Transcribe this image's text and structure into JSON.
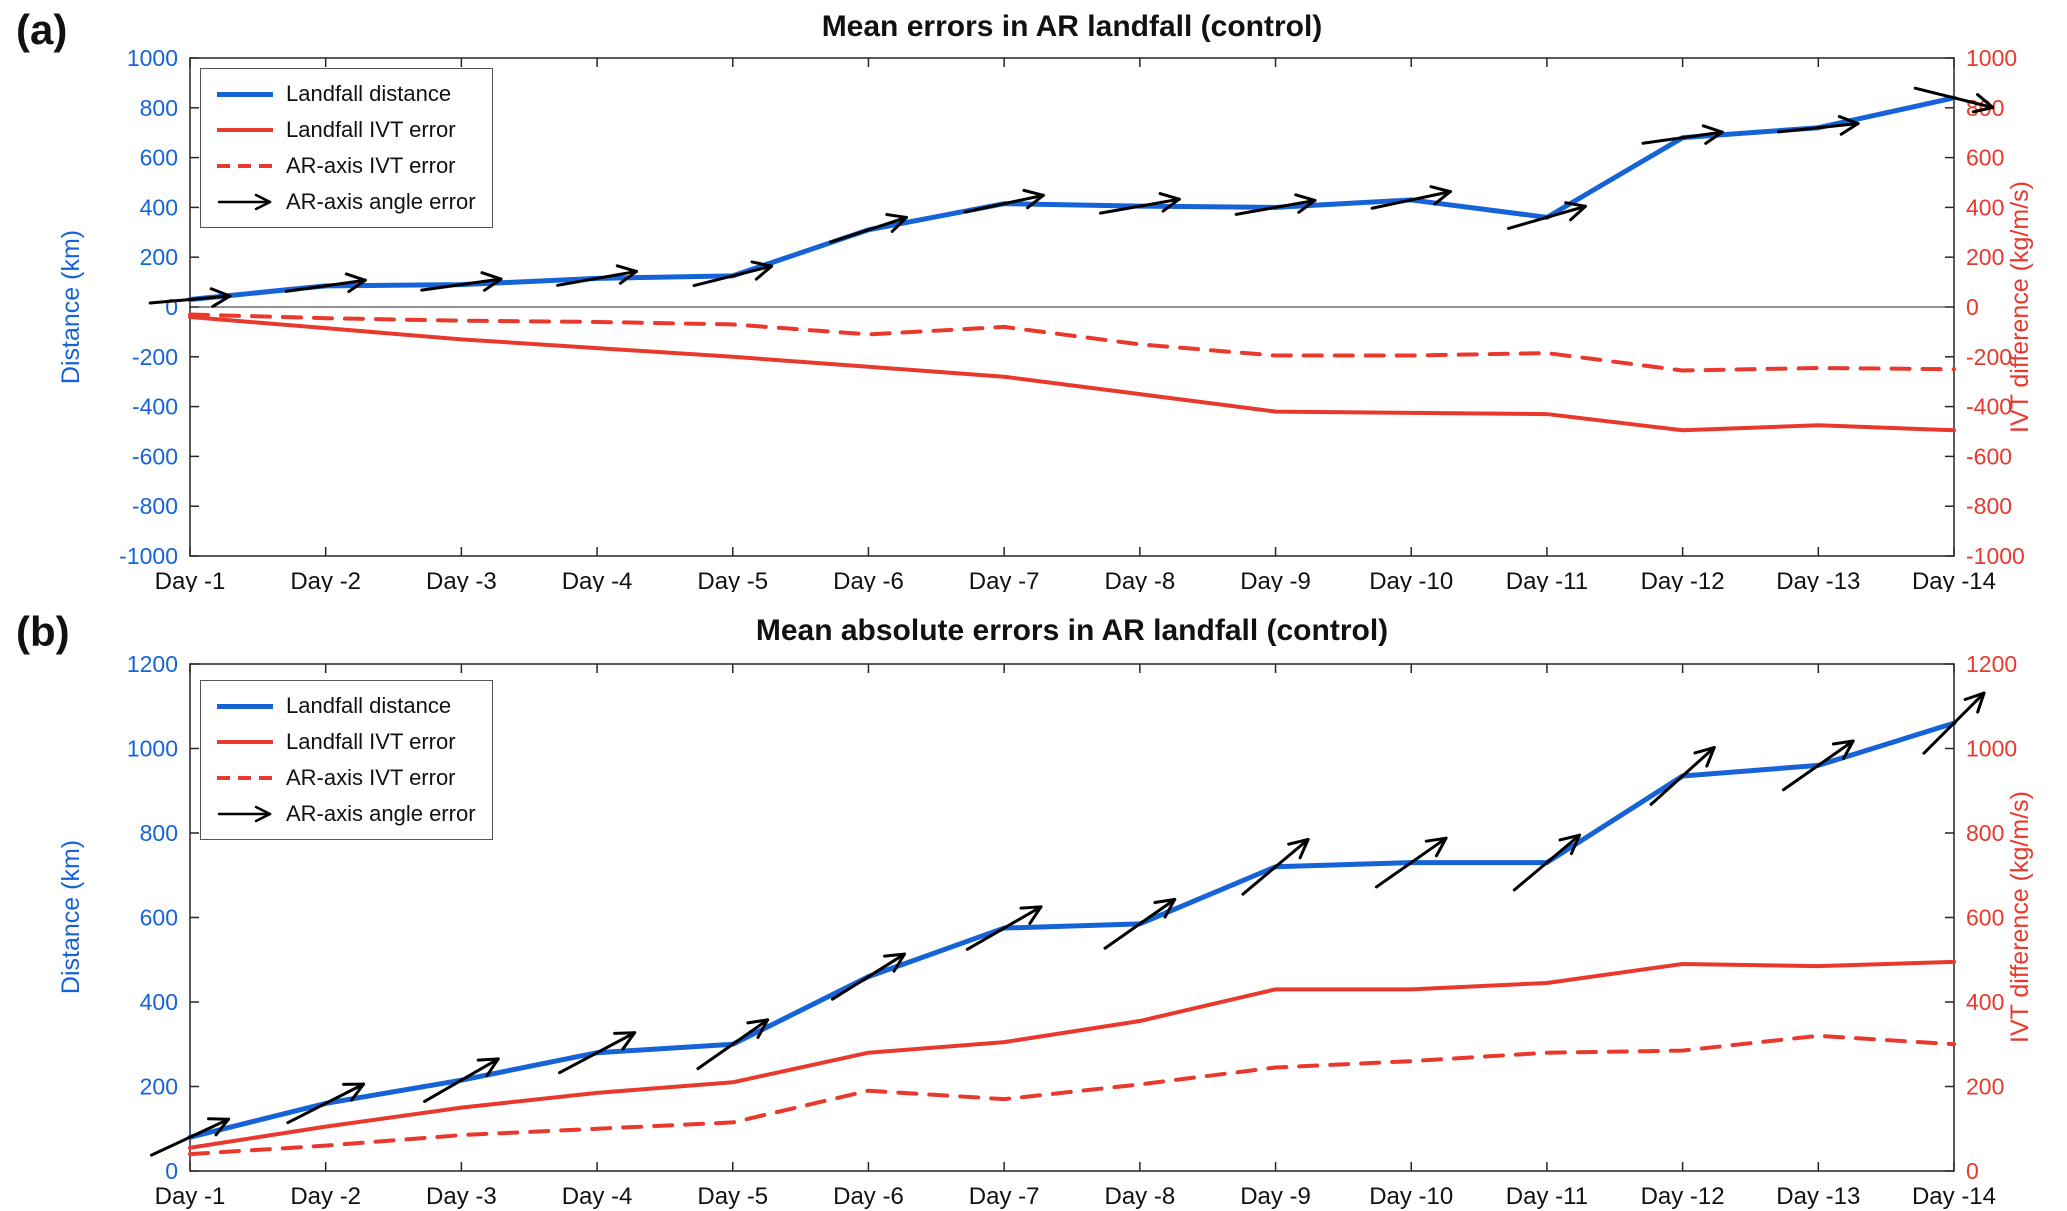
{
  "colors": {
    "blue": "#1663d8",
    "red": "#e8392c",
    "black": "#000000",
    "axis": "#262626"
  },
  "chart_data": [
    {
      "type": "line",
      "panel_label": "(a)",
      "title": "Mean errors in AR landfall (control)",
      "ylabel_left": "Distance (km)",
      "ylabel_right": "IVT difference (kg/m/s)",
      "ylim": [
        -1000,
        1000
      ],
      "ytick_step": 200,
      "zero_line": true,
      "legend_position": "top-left",
      "categories": [
        "Day -1",
        "Day -2",
        "Day -3",
        "Day -4",
        "Day -5",
        "Day -6",
        "Day -7",
        "Day -8",
        "Day -9",
        "Day -10",
        "Day -11",
        "Day -12",
        "Day -13",
        "Day -14"
      ],
      "series": [
        {
          "name": "Landfall distance",
          "axis": "left",
          "style": "solid",
          "color_key": "blue",
          "width": 5,
          "values": [
            30,
            85,
            90,
            115,
            125,
            310,
            415,
            405,
            400,
            430,
            360,
            680,
            720,
            840
          ]
        },
        {
          "name": "Landfall IVT error",
          "axis": "right",
          "style": "solid",
          "color_key": "red",
          "width": 4,
          "values": [
            -40,
            -85,
            -130,
            -165,
            -200,
            -240,
            -280,
            -350,
            -420,
            -425,
            -430,
            -495,
            -475,
            -495
          ]
        },
        {
          "name": "AR-axis IVT error",
          "axis": "right",
          "style": "dashed",
          "color_key": "red",
          "width": 4,
          "values": [
            -30,
            -45,
            -55,
            -60,
            -70,
            -110,
            -80,
            -150,
            -195,
            -195,
            -185,
            -255,
            -245,
            -250
          ]
        },
        {
          "name": "AR-axis angle error",
          "type": "quiver",
          "color_key": "black",
          "anchor_series": 0,
          "length": 80,
          "angles_deg": [
            5,
            8,
            8,
            10,
            14,
            18,
            12,
            10,
            10,
            12,
            16,
            8,
            6,
            -14
          ]
        }
      ]
    },
    {
      "type": "line",
      "panel_label": "(b)",
      "title": "Mean absolute errors in AR landfall (control)",
      "ylabel_left": "Distance (km)",
      "ylabel_right": "IVT difference (kg/m/s)",
      "ylim": [
        0,
        1200
      ],
      "ytick_step": 200,
      "zero_line": false,
      "legend_position": "top-left",
      "categories": [
        "Day -1",
        "Day -2",
        "Day -3",
        "Day -4",
        "Day -5",
        "Day -6",
        "Day -7",
        "Day -8",
        "Day -9",
        "Day -10",
        "Day -11",
        "Day -12",
        "Day -13",
        "Day -14"
      ],
      "series": [
        {
          "name": "Landfall distance",
          "axis": "left",
          "style": "solid",
          "color_key": "blue",
          "width": 5,
          "values": [
            80,
            160,
            215,
            280,
            300,
            460,
            575,
            585,
            720,
            730,
            730,
            935,
            960,
            1060
          ]
        },
        {
          "name": "Landfall IVT error",
          "axis": "right",
          "style": "solid",
          "color_key": "red",
          "width": 4,
          "values": [
            55,
            105,
            150,
            185,
            210,
            280,
            305,
            355,
            430,
            430,
            445,
            490,
            485,
            495
          ]
        },
        {
          "name": "AR-axis IVT error",
          "axis": "right",
          "style": "dashed",
          "color_key": "red",
          "width": 4,
          "values": [
            40,
            60,
            85,
            100,
            115,
            190,
            170,
            205,
            245,
            260,
            280,
            285,
            320,
            300
          ]
        },
        {
          "name": "AR-axis angle error",
          "type": "quiver",
          "color_key": "black",
          "anchor_series": 0,
          "length": 85,
          "angles_deg": [
            25,
            27,
            30,
            28,
            35,
            32,
            30,
            35,
            40,
            35,
            40,
            42,
            35,
            45
          ]
        }
      ]
    }
  ]
}
